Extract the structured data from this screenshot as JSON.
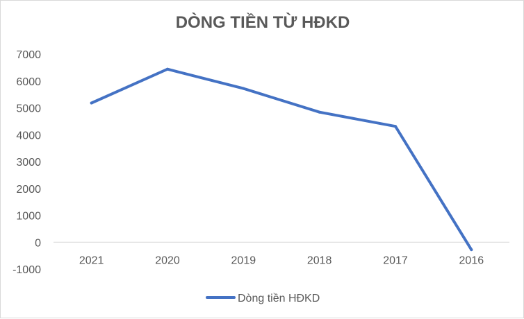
{
  "chart_data": {
    "type": "line",
    "title": "DÒNG TIỀN TỪ HĐKD",
    "categories": [
      "2021",
      "2020",
      "2019",
      "2018",
      "2017",
      "2016"
    ],
    "series": [
      {
        "name": "Dòng tiền HĐKD",
        "values": [
          5180,
          6440,
          5720,
          4840,
          4310,
          -280
        ],
        "color": "#4472c4"
      }
    ],
    "yticks": [
      "7000",
      "6000",
      "5000",
      "4000",
      "3000",
      "2000",
      "1000",
      "0",
      "-1000"
    ],
    "ylim": [
      -1000,
      7000
    ],
    "grid": false,
    "legend": "bottom",
    "xlabel": "",
    "ylabel": ""
  }
}
